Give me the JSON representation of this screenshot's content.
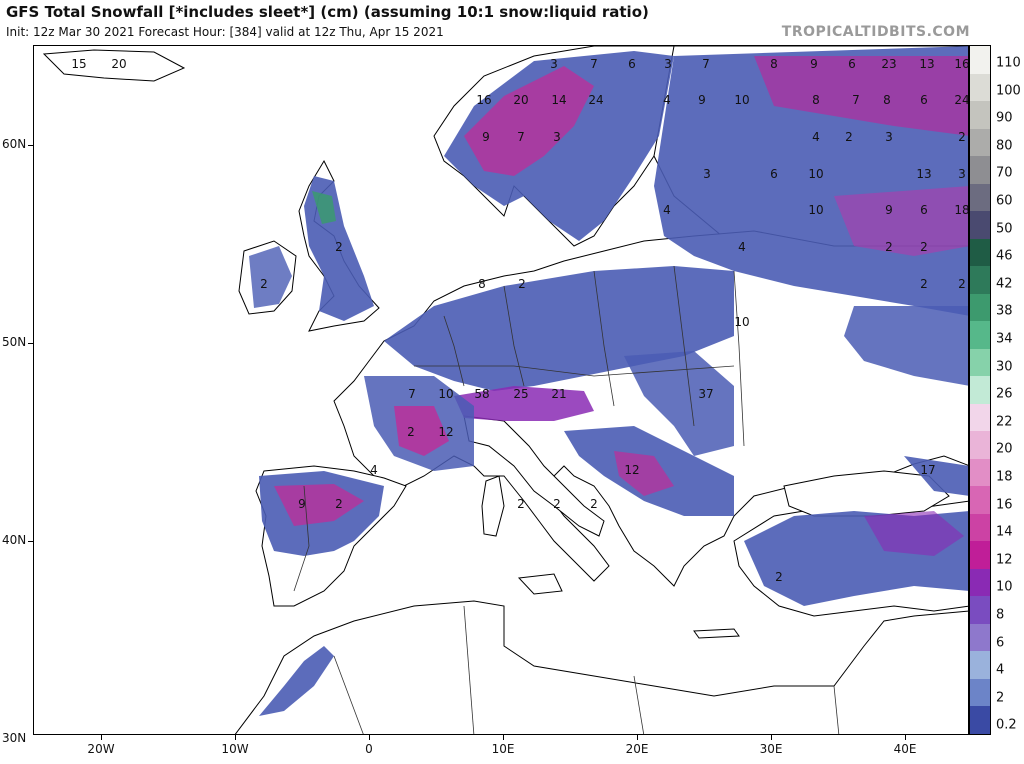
{
  "header": {
    "title": "GFS Total Snowfall [*includes sleet*] (cm) (assuming 10:1 snow:liquid ratio)",
    "subtitle": "Init: 12z Mar 30 2021   Forecast Hour: [384]   valid at 12z Thu, Apr 15 2021",
    "brand": "TROPICALTIDBITS.COM"
  },
  "axes": {
    "lat_labels": [
      "60N",
      "50N",
      "40N",
      "30N"
    ],
    "lon_labels": [
      "20W",
      "10W",
      "0",
      "10E",
      "20E",
      "30E",
      "40E"
    ]
  },
  "legend": {
    "units": "cm",
    "levels": [
      "110",
      "100",
      "90",
      "80",
      "70",
      "60",
      "50",
      "46",
      "42",
      "38",
      "34",
      "30",
      "26",
      "22",
      "20",
      "18",
      "16",
      "14",
      "12",
      "10",
      "8",
      "6",
      "4",
      "2",
      "0.2"
    ],
    "colors": [
      "#f2f2ee",
      "#dcdcd6",
      "#c4c4be",
      "#acacaa",
      "#8e8e92",
      "#6c6c80",
      "#4a4a70",
      "#1f5c45",
      "#2e7a5a",
      "#3d9a6e",
      "#56b88a",
      "#86d2aa",
      "#c2ead6",
      "#f2d6ea",
      "#eab4d8",
      "#e28ec6",
      "#d866b4",
      "#cc42a4",
      "#c01e98",
      "#8a2ab4",
      "#7a4cc0",
      "#8e78cc",
      "#9ab2dc",
      "#6c84c8",
      "#3a4aa4"
    ]
  },
  "map": {
    "snow_labels": [
      "15",
      "20",
      "3",
      "7",
      "6",
      "3",
      "7",
      "8",
      "9",
      "6",
      "23",
      "13",
      "16",
      "16",
      "20",
      "14",
      "24",
      "4",
      "9",
      "10",
      "8",
      "7",
      "8",
      "6",
      "24",
      "9",
      "7",
      "3",
      "4",
      "2",
      "3",
      "2",
      "3",
      "6",
      "10",
      "13",
      "3",
      "4",
      "10",
      "9",
      "6",
      "18",
      "2",
      "4",
      "2",
      "2",
      "8",
      "2",
      "2",
      "2",
      "2",
      "10",
      "7",
      "10",
      "58",
      "25",
      "21",
      "37",
      "2",
      "12",
      "4",
      "12",
      "9",
      "2",
      "2",
      "2",
      "2",
      "2",
      "17"
    ]
  }
}
